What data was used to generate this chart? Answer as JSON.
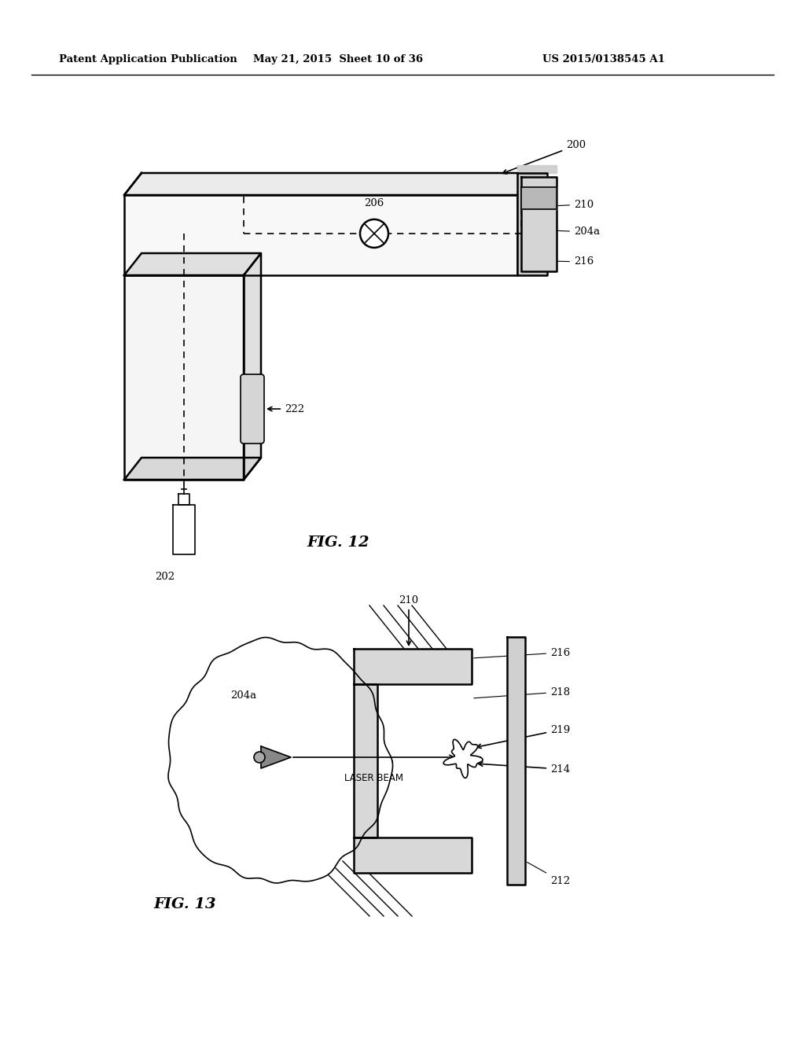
{
  "header_left": "Patent Application Publication",
  "header_mid": "May 21, 2015  Sheet 10 of 36",
  "header_right": "US 2015/0138545 A1",
  "fig12_label": "FIG. 12",
  "fig13_label": "FIG. 13",
  "background_color": "#ffffff",
  "line_color": "#000000"
}
